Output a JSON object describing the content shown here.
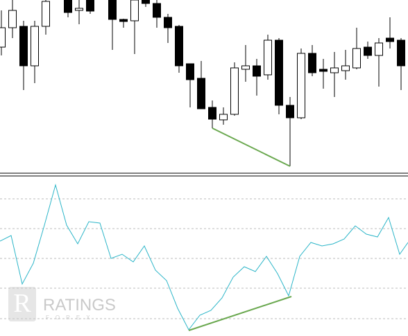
{
  "chart_data": [
    {
      "type": "candlestick",
      "x": [
        0,
        1,
        2,
        3,
        4,
        6,
        7,
        8,
        10,
        11,
        12,
        13,
        14,
        15,
        16,
        17,
        18,
        19,
        20,
        21,
        22,
        23,
        24,
        25,
        26,
        27,
        28,
        29,
        30,
        31,
        32,
        33,
        34,
        35,
        36
      ],
      "open": [
        180,
        208,
        210,
        153,
        210,
        248,
        233,
        248,
        248,
        220,
        218,
        248,
        243,
        223,
        210,
        156,
        135,
        93,
        75,
        83,
        148,
        153,
        140,
        190,
        96,
        78,
        171,
        148,
        143,
        146,
        150,
        180,
        168,
        193,
        190
      ],
      "high": [
        233,
        248,
        218,
        218,
        248,
        248,
        248,
        248,
        248,
        221,
        248,
        248,
        248,
        228,
        212,
        156,
        160,
        103,
        93,
        158,
        183,
        163,
        198,
        193,
        108,
        178,
        183,
        163,
        173,
        176,
        208,
        188,
        193,
        223,
        193
      ],
      "low": [
        168,
        193,
        118,
        128,
        198,
        223,
        213,
        228,
        176,
        208,
        170,
        238,
        208,
        186,
        143,
        93,
        91,
        63,
        68,
        81,
        130,
        110,
        133,
        83,
        8,
        76,
        138,
        120,
        108,
        133,
        148,
        163,
        123,
        178,
        118
      ],
      "close": [
        208,
        233,
        153,
        210,
        246,
        230,
        236,
        232,
        220,
        217,
        248,
        243,
        223,
        208,
        153,
        133,
        91,
        76,
        83,
        150,
        153,
        138,
        190,
        96,
        78,
        171,
        143,
        145,
        150,
        153,
        178,
        168,
        186,
        188,
        153
      ],
      "up_color": "#ffffff",
      "down_color": "#000000",
      "xlim": [
        -0.125,
        36.625
      ],
      "ylim": [
        0,
        248
      ],
      "trendline": {
        "x": [
          19,
          26
        ],
        "y": [
          63,
          8
        ],
        "color": "#6aa84f"
      }
    },
    {
      "type": "line",
      "x": [
        0,
        1,
        2,
        3,
        4,
        5,
        6,
        7,
        8,
        9,
        10,
        11,
        12,
        13,
        14,
        15,
        16,
        17,
        18,
        19,
        20,
        21,
        22,
        23,
        24,
        25,
        26,
        27,
        28,
        29,
        30,
        31,
        32,
        33,
        34,
        35,
        36,
        36.75
      ],
      "values": [
        137,
        145,
        75,
        105,
        160,
        218,
        160,
        133,
        165,
        163,
        112,
        118,
        107,
        130,
        95,
        80,
        40,
        9,
        30,
        37,
        55,
        85,
        100,
        93,
        115,
        90,
        58,
        115,
        135,
        130,
        133,
        140,
        159,
        147,
        143,
        171,
        118,
        135
      ],
      "color": "#2bb5c8",
      "xlim": [
        0,
        36.75
      ],
      "ylim": [
        0,
        230
      ],
      "yticks": [
        25,
        69,
        112,
        155,
        198
      ],
      "grid": true,
      "trendline": {
        "x": [
          17,
          26.25
        ],
        "y": [
          8,
          57
        ],
        "color": "#6aa84f"
      }
    }
  ],
  "watermark": {
    "title": "RATINGS",
    "subtitle": "FOREX"
  }
}
